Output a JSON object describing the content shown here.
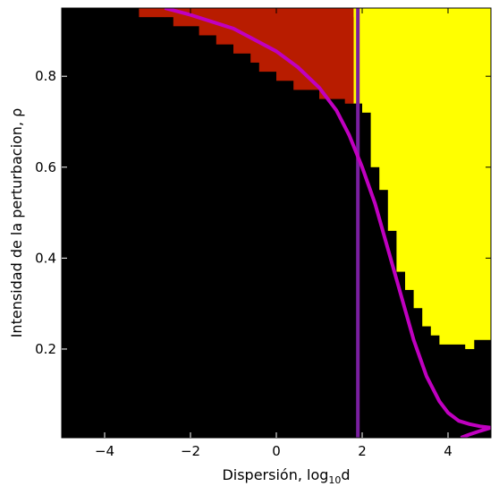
{
  "chart_data": {
    "type": "heatmap",
    "xlabel": "Dispersión, log",
    "xlabel_sub": "10",
    "xlabel_suffix": "d",
    "ylabel": "Intensidad de la perturbacion, ρ",
    "xlim": [
      -5,
      5
    ],
    "ylim": [
      0.005,
      0.95
    ],
    "x_ticks": [
      -4,
      -2,
      0,
      2,
      4
    ],
    "y_ticks": [
      0.2,
      0.4,
      0.6,
      0.8
    ],
    "x_tick_labels": [
      "−4",
      "−2",
      "0",
      "2",
      "4"
    ],
    "y_tick_labels": [
      "0.2",
      "0.4",
      "0.6",
      "0.8"
    ],
    "grid": false,
    "colors": {
      "background": "#000000",
      "red_region": "#b81c00",
      "yellow_region": "#ffff00",
      "curve": "#c000c0",
      "vertical_line": "#7a1fa0"
    },
    "red_region_steps": [
      {
        "x_from": -3.2,
        "x_to": -2.6,
        "rho": 0.93
      },
      {
        "x_from": -2.6,
        "x_to": -2.4,
        "rho": 0.93
      },
      {
        "x_from": -2.4,
        "x_to": -1.8,
        "rho": 0.91
      },
      {
        "x_from": -1.8,
        "x_to": -1.4,
        "rho": 0.89
      },
      {
        "x_from": -1.4,
        "x_to": -1.0,
        "rho": 0.87
      },
      {
        "x_from": -1.0,
        "x_to": -0.6,
        "rho": 0.85
      },
      {
        "x_from": -0.6,
        "x_to": -0.4,
        "rho": 0.83
      },
      {
        "x_from": -0.4,
        "x_to": 0.0,
        "rho": 0.81
      },
      {
        "x_from": 0.0,
        "x_to": 0.4,
        "rho": 0.79
      },
      {
        "x_from": 0.4,
        "x_to": 1.0,
        "rho": 0.77
      },
      {
        "x_from": 1.0,
        "x_to": 1.6,
        "rho": 0.75
      },
      {
        "x_from": 1.6,
        "x_to": 1.8,
        "rho": 0.74
      }
    ],
    "yellow_region_steps": [
      {
        "x_from": 1.8,
        "x_to": 2.0,
        "rho": 0.74
      },
      {
        "x_from": 2.0,
        "x_to": 2.2,
        "rho": 0.72
      },
      {
        "x_from": 2.2,
        "x_to": 2.4,
        "rho": 0.6
      },
      {
        "x_from": 2.4,
        "x_to": 2.6,
        "rho": 0.55
      },
      {
        "x_from": 2.6,
        "x_to": 2.8,
        "rho": 0.46
      },
      {
        "x_from": 2.8,
        "x_to": 3.0,
        "rho": 0.37
      },
      {
        "x_from": 3.0,
        "x_to": 3.2,
        "rho": 0.33
      },
      {
        "x_from": 3.2,
        "x_to": 3.4,
        "rho": 0.29
      },
      {
        "x_from": 3.4,
        "x_to": 3.6,
        "rho": 0.25
      },
      {
        "x_from": 3.6,
        "x_to": 3.8,
        "rho": 0.23
      },
      {
        "x_from": 3.8,
        "x_to": 4.4,
        "rho": 0.21
      },
      {
        "x_from": 4.4,
        "x_to": 4.6,
        "rho": 0.2
      },
      {
        "x_from": 4.6,
        "x_to": 5.0,
        "rho": 0.22
      }
    ],
    "yellow_notch": {
      "x_from": 1.8,
      "x_to": 1.9,
      "rho_from": 0.93,
      "rho_to": 0.95
    },
    "curve_points": [
      {
        "x": -2.6,
        "y": 0.95
      },
      {
        "x": -2.0,
        "y": 0.935
      },
      {
        "x": -1.0,
        "y": 0.905
      },
      {
        "x": 0.0,
        "y": 0.855
      },
      {
        "x": 0.5,
        "y": 0.82
      },
      {
        "x": 1.0,
        "y": 0.775
      },
      {
        "x": 1.4,
        "y": 0.725
      },
      {
        "x": 1.7,
        "y": 0.67
      },
      {
        "x": 2.0,
        "y": 0.6
      },
      {
        "x": 2.3,
        "y": 0.52
      },
      {
        "x": 2.6,
        "y": 0.42
      },
      {
        "x": 2.9,
        "y": 0.32
      },
      {
        "x": 3.2,
        "y": 0.22
      },
      {
        "x": 3.5,
        "y": 0.14
      },
      {
        "x": 3.8,
        "y": 0.085
      },
      {
        "x": 4.0,
        "y": 0.06
      },
      {
        "x": 4.25,
        "y": 0.042
      },
      {
        "x": 4.5,
        "y": 0.035
      },
      {
        "x": 4.75,
        "y": 0.03
      },
      {
        "x": 5.0,
        "y": 0.027
      },
      {
        "x": 4.75,
        "y": 0.02
      },
      {
        "x": 4.5,
        "y": 0.012
      },
      {
        "x": 4.3,
        "y": 0.005
      }
    ],
    "vertical_line_x": 1.9
  }
}
